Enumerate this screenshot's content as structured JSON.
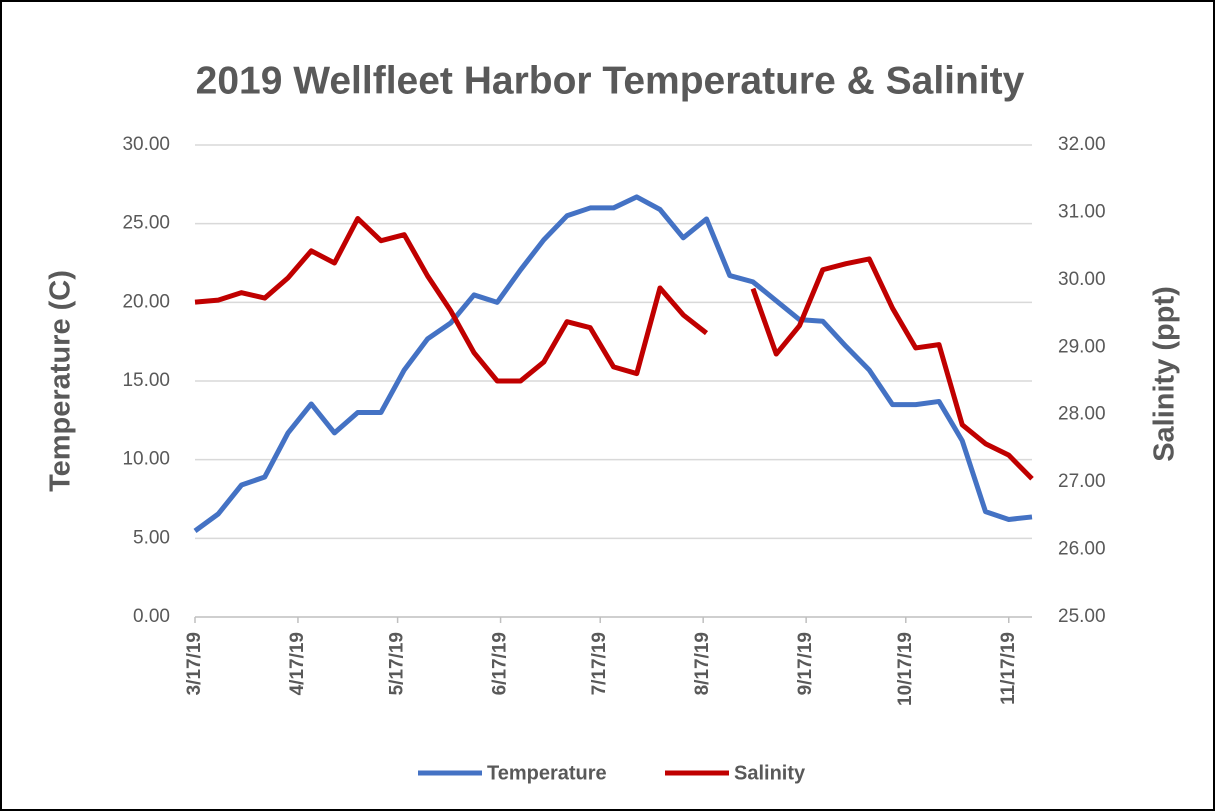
{
  "chart_data": {
    "type": "line",
    "title": "2019 Wellfleet Harbor Temperature & Salinity",
    "ylabel": "Temperature (C)",
    "y2label": "Salinity (ppt)",
    "x": [
      "3/17/19",
      "3/24/19",
      "3/31/19",
      "4/7/19",
      "4/14/19",
      "4/21/19",
      "4/28/19",
      "5/5/19",
      "5/12/19",
      "5/19/19",
      "5/26/19",
      "6/2/19",
      "6/9/19",
      "6/16/19",
      "6/23/19",
      "6/30/19",
      "7/7/19",
      "7/14/19",
      "7/21/19",
      "7/28/19",
      "8/4/19",
      "8/11/19",
      "8/18/19",
      "8/25/19",
      "9/1/19",
      "9/8/19",
      "9/15/19",
      "9/22/19",
      "9/29/19",
      "10/6/19",
      "10/13/19",
      "10/20/19",
      "10/27/19",
      "11/3/19",
      "11/10/19",
      "11/17/19",
      "11/24/19"
    ],
    "series": [
      {
        "name": "Temperature",
        "color": "#4472c4",
        "axis": "y",
        "values": [
          5.47,
          6.55,
          8.39,
          8.9,
          11.7,
          13.54,
          11.7,
          13.0,
          13.0,
          15.7,
          17.67,
          18.69,
          20.47,
          20.0,
          22.06,
          23.97,
          25.5,
          26.0,
          26.0,
          26.7,
          25.9,
          24.1,
          25.3,
          21.7,
          21.3,
          20.1,
          18.9,
          18.8,
          17.2,
          15.7,
          13.5,
          13.5,
          13.7,
          11.2,
          6.7,
          6.2,
          6.36
        ]
      },
      {
        "name": "Salinity",
        "color": "#c00000",
        "axis": "y2",
        "values": [
          29.67,
          29.7,
          29.81,
          29.73,
          30.03,
          30.43,
          30.25,
          30.91,
          30.58,
          30.67,
          30.06,
          29.54,
          28.92,
          28.5,
          28.5,
          28.78,
          29.38,
          29.29,
          28.71,
          28.61,
          29.88,
          29.48,
          29.21,
          null,
          29.87,
          28.9,
          29.32,
          30.15,
          30.24,
          30.31,
          29.58,
          28.99,
          29.04,
          27.85,
          27.57,
          27.4,
          27.05
        ]
      }
    ],
    "xlim": [
      "3/17/19",
      "11/24/19"
    ],
    "xticks": [
      "3/17/19",
      "4/17/19",
      "5/17/19",
      "6/17/19",
      "7/17/19",
      "8/17/19",
      "9/17/19",
      "10/17/19",
      "11/17/19"
    ],
    "ylim": [
      0,
      30
    ],
    "yticks": [
      {
        "value": 0,
        "label": "0.00"
      },
      {
        "value": 5,
        "label": "5.00"
      },
      {
        "value": 10,
        "label": "10.00"
      },
      {
        "value": 15,
        "label": "15.00"
      },
      {
        "value": 20,
        "label": "20.00"
      },
      {
        "value": 25,
        "label": "25.00"
      },
      {
        "value": 30,
        "label": "30.00"
      }
    ],
    "y2lim": [
      25,
      32
    ],
    "y2ticks": [
      {
        "value": 25,
        "label": "25.00"
      },
      {
        "value": 26,
        "label": "26.00"
      },
      {
        "value": 27,
        "label": "27.00"
      },
      {
        "value": 28,
        "label": "28.00"
      },
      {
        "value": 29,
        "label": "29.00"
      },
      {
        "value": 30,
        "label": "30.00"
      },
      {
        "value": 31,
        "label": "31.00"
      },
      {
        "value": 32,
        "label": "32.00"
      }
    ],
    "grid": true,
    "legend": "bottom"
  }
}
